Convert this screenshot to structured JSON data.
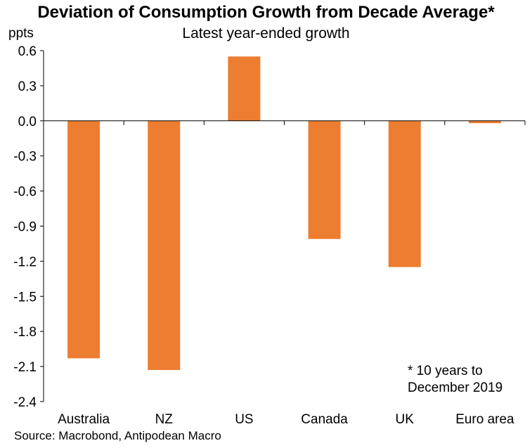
{
  "chart_data": {
    "type": "bar",
    "title": "Deviation of Consumption Growth from Decade Average*",
    "subtitle": "Latest year-ended growth",
    "ylabel": "ppts",
    "xlabel": "",
    "categories": [
      "Australia",
      "NZ",
      "US",
      "Canada",
      "UK",
      "Euro area"
    ],
    "values": [
      -2.03,
      -2.13,
      0.55,
      -1.01,
      -1.25,
      -0.02
    ],
    "ylim": [
      -2.4,
      0.6
    ],
    "yticks": [
      "0.6",
      "0.3",
      "0.0",
      "-0.3",
      "-0.6",
      "-0.9",
      "-1.2",
      "-1.5",
      "-1.8",
      "-2.1",
      "-2.4"
    ],
    "bar_color": "#ED7D31",
    "grid": false,
    "note": "* 10 years to\nDecember 2019",
    "source": "Source: Macrobond, Antipodean Macro"
  }
}
